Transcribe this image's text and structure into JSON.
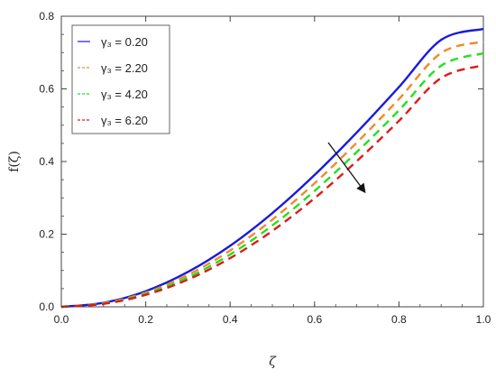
{
  "chart_data": {
    "type": "line",
    "xlabel": "ζ",
    "ylabel": "f(ζ)",
    "xlim": [
      0,
      1.0
    ],
    "ylim": [
      0,
      0.8
    ],
    "x_ticks": [
      0.0,
      0.2,
      0.4,
      0.6,
      0.8,
      1.0
    ],
    "x_tick_labels": [
      "0.0",
      "0.2",
      "0.4",
      "0.6",
      "0.8",
      "1.0"
    ],
    "y_ticks": [
      0.0,
      0.2,
      0.4,
      0.6,
      0.8
    ],
    "y_tick_labels": [
      "0.0",
      "0.2",
      "0.4",
      "0.6",
      "0.8"
    ],
    "legend_position": "top-left",
    "grid": false,
    "x": [
      0,
      0.1,
      0.2,
      0.3,
      0.4,
      0.5,
      0.6,
      0.7,
      0.8,
      0.9,
      1.0
    ],
    "series": [
      {
        "name": "γ₃ = 0.20",
        "color": "#1a1adf",
        "style": "solid",
        "values": [
          0,
          0.011,
          0.043,
          0.096,
          0.168,
          0.258,
          0.363,
          0.48,
          0.605,
          0.735,
          0.765
        ]
      },
      {
        "name": "γ₃ = 2.20",
        "color": "#f08a2a",
        "style": "dashed",
        "values": [
          0,
          0.01,
          0.039,
          0.088,
          0.155,
          0.24,
          0.34,
          0.452,
          0.572,
          0.699,
          0.73
        ]
      },
      {
        "name": "γ₃ = 4.20",
        "color": "#22e022",
        "style": "dashed",
        "values": [
          0,
          0.009,
          0.036,
          0.081,
          0.144,
          0.224,
          0.319,
          0.426,
          0.541,
          0.664,
          0.698
        ]
      },
      {
        "name": "γ₃ = 6.20",
        "color": "#e01a1a",
        "style": "dashed",
        "values": [
          0,
          0.008,
          0.033,
          0.075,
          0.134,
          0.209,
          0.299,
          0.401,
          0.512,
          0.63,
          0.665
        ]
      }
    ]
  }
}
